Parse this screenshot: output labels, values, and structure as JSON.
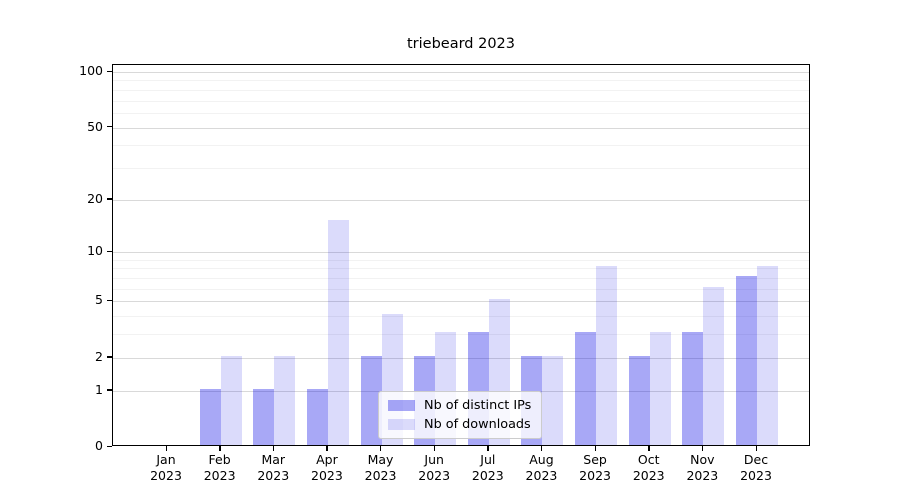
{
  "chart_data": {
    "type": "bar",
    "title": "triebeard 2023",
    "categories": [
      "Jan",
      "Feb",
      "Mar",
      "Apr",
      "May",
      "Jun",
      "Jul",
      "Aug",
      "Sep",
      "Oct",
      "Nov",
      "Dec"
    ],
    "year_label": "2023",
    "series": [
      {
        "name": "Nb of distinct IPs",
        "color": "rgba(0,0,230,0.34)",
        "values": [
          0,
          1,
          1,
          1,
          2,
          2,
          3,
          2,
          3,
          2,
          3,
          7
        ]
      },
      {
        "name": "Nb of downloads",
        "color": "rgba(0,0,230,0.14)",
        "values": [
          0,
          2,
          2,
          15,
          4,
          3,
          5,
          2,
          8,
          3,
          6,
          8
        ]
      }
    ],
    "yscale": "log1p",
    "yticks": [
      0,
      1,
      2,
      5,
      10,
      20,
      50,
      100
    ],
    "minor_gridlines": [
      3,
      4,
      6,
      7,
      8,
      9,
      30,
      40,
      60,
      70,
      80,
      90
    ],
    "ylim": [
      0,
      109
    ],
    "xlabel": "",
    "ylabel": "",
    "grid": "on",
    "legend_position": "lower center"
  },
  "colors": {
    "bar_distinct_ips": "rgba(0,0,230,0.34)",
    "bar_downloads": "rgba(0,0,230,0.14)",
    "grid_major": "#d9d9d9",
    "grid_minor": "#f2f2f2",
    "axis": "#000000",
    "text": "#000000",
    "legend_border": "#cccccc",
    "legend_background": "rgba(255,255,255,0.8)"
  }
}
